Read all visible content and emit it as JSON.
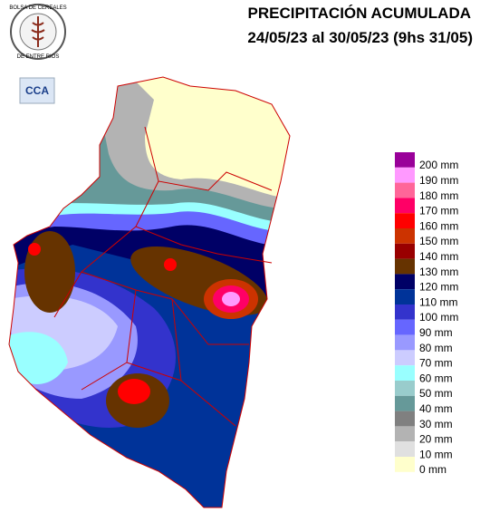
{
  "header": {
    "title": "PRECIPITACIÓN ACUMULADA",
    "subtitle": "24/05/23 al 30/05/23 (9hs 31/05)"
  },
  "logos": {
    "circle_top": "BOLSA DE CEREALES",
    "circle_bottom": "DE ENTRE RIOS",
    "badge": "CCA"
  },
  "legend": [
    {
      "label": "200 mm",
      "color": "#990099"
    },
    {
      "label": "190 mm",
      "color": "#ff99ff"
    },
    {
      "label": "180 mm",
      "color": "#ff6699"
    },
    {
      "label": "170 mm",
      "color": "#ff0066"
    },
    {
      "label": "160 mm",
      "color": "#ff0000"
    },
    {
      "label": "150 mm",
      "color": "#cc3300"
    },
    {
      "label": "140 mm",
      "color": "#990000"
    },
    {
      "label": "130 mm",
      "color": "#663300"
    },
    {
      "label": "120 mm",
      "color": "#000066"
    },
    {
      "label": "110 mm",
      "color": "#003399"
    },
    {
      "label": "100 mm",
      "color": "#3333cc"
    },
    {
      "label": "90 mm",
      "color": "#6666ff"
    },
    {
      "label": "80 mm",
      "color": "#9999ff"
    },
    {
      "label": "70 mm",
      "color": "#ccccff"
    },
    {
      "label": "60 mm",
      "color": "#99ffff"
    },
    {
      "label": "50 mm",
      "color": "#99cccc"
    },
    {
      "label": "40 mm",
      "color": "#669999"
    },
    {
      "label": "30 mm",
      "color": "#808080"
    },
    {
      "label": "20 mm",
      "color": "#b3b3b3"
    },
    {
      "label": "10 mm",
      "color": "#e0e0e0"
    },
    {
      "label": "0 mm",
      "color": "#ffffcc"
    }
  ]
}
